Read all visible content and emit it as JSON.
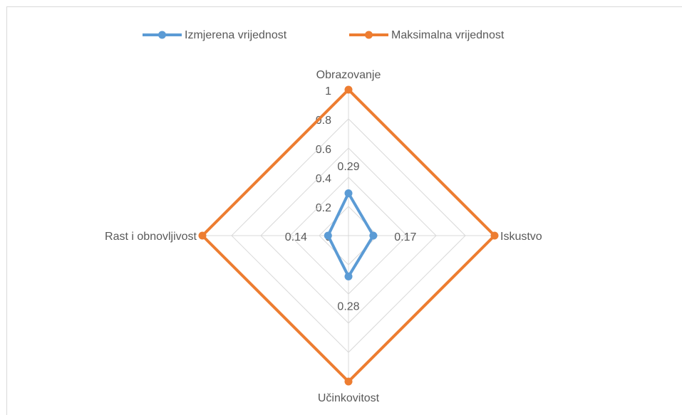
{
  "chart_data": {
    "type": "radar",
    "categories": [
      "Obrazovanje",
      "Iskustvo",
      "Učinkovitost",
      "Rast i obnovljivost"
    ],
    "series": [
      {
        "name": "Izmjerena vrijednost",
        "color": "#5b9bd5",
        "values": [
          0.29,
          0.17,
          0.28,
          0.14
        ]
      },
      {
        "name": "Maksimalna vrijednost",
        "color": "#ed7d31",
        "values": [
          1,
          1,
          1,
          1
        ]
      }
    ],
    "data_labels_series": [
      0
    ],
    "rlim": [
      0,
      1
    ],
    "rticks": [
      0,
      0.2,
      0.4,
      0.6,
      0.8,
      1
    ],
    "grid": true,
    "legend": "top"
  }
}
